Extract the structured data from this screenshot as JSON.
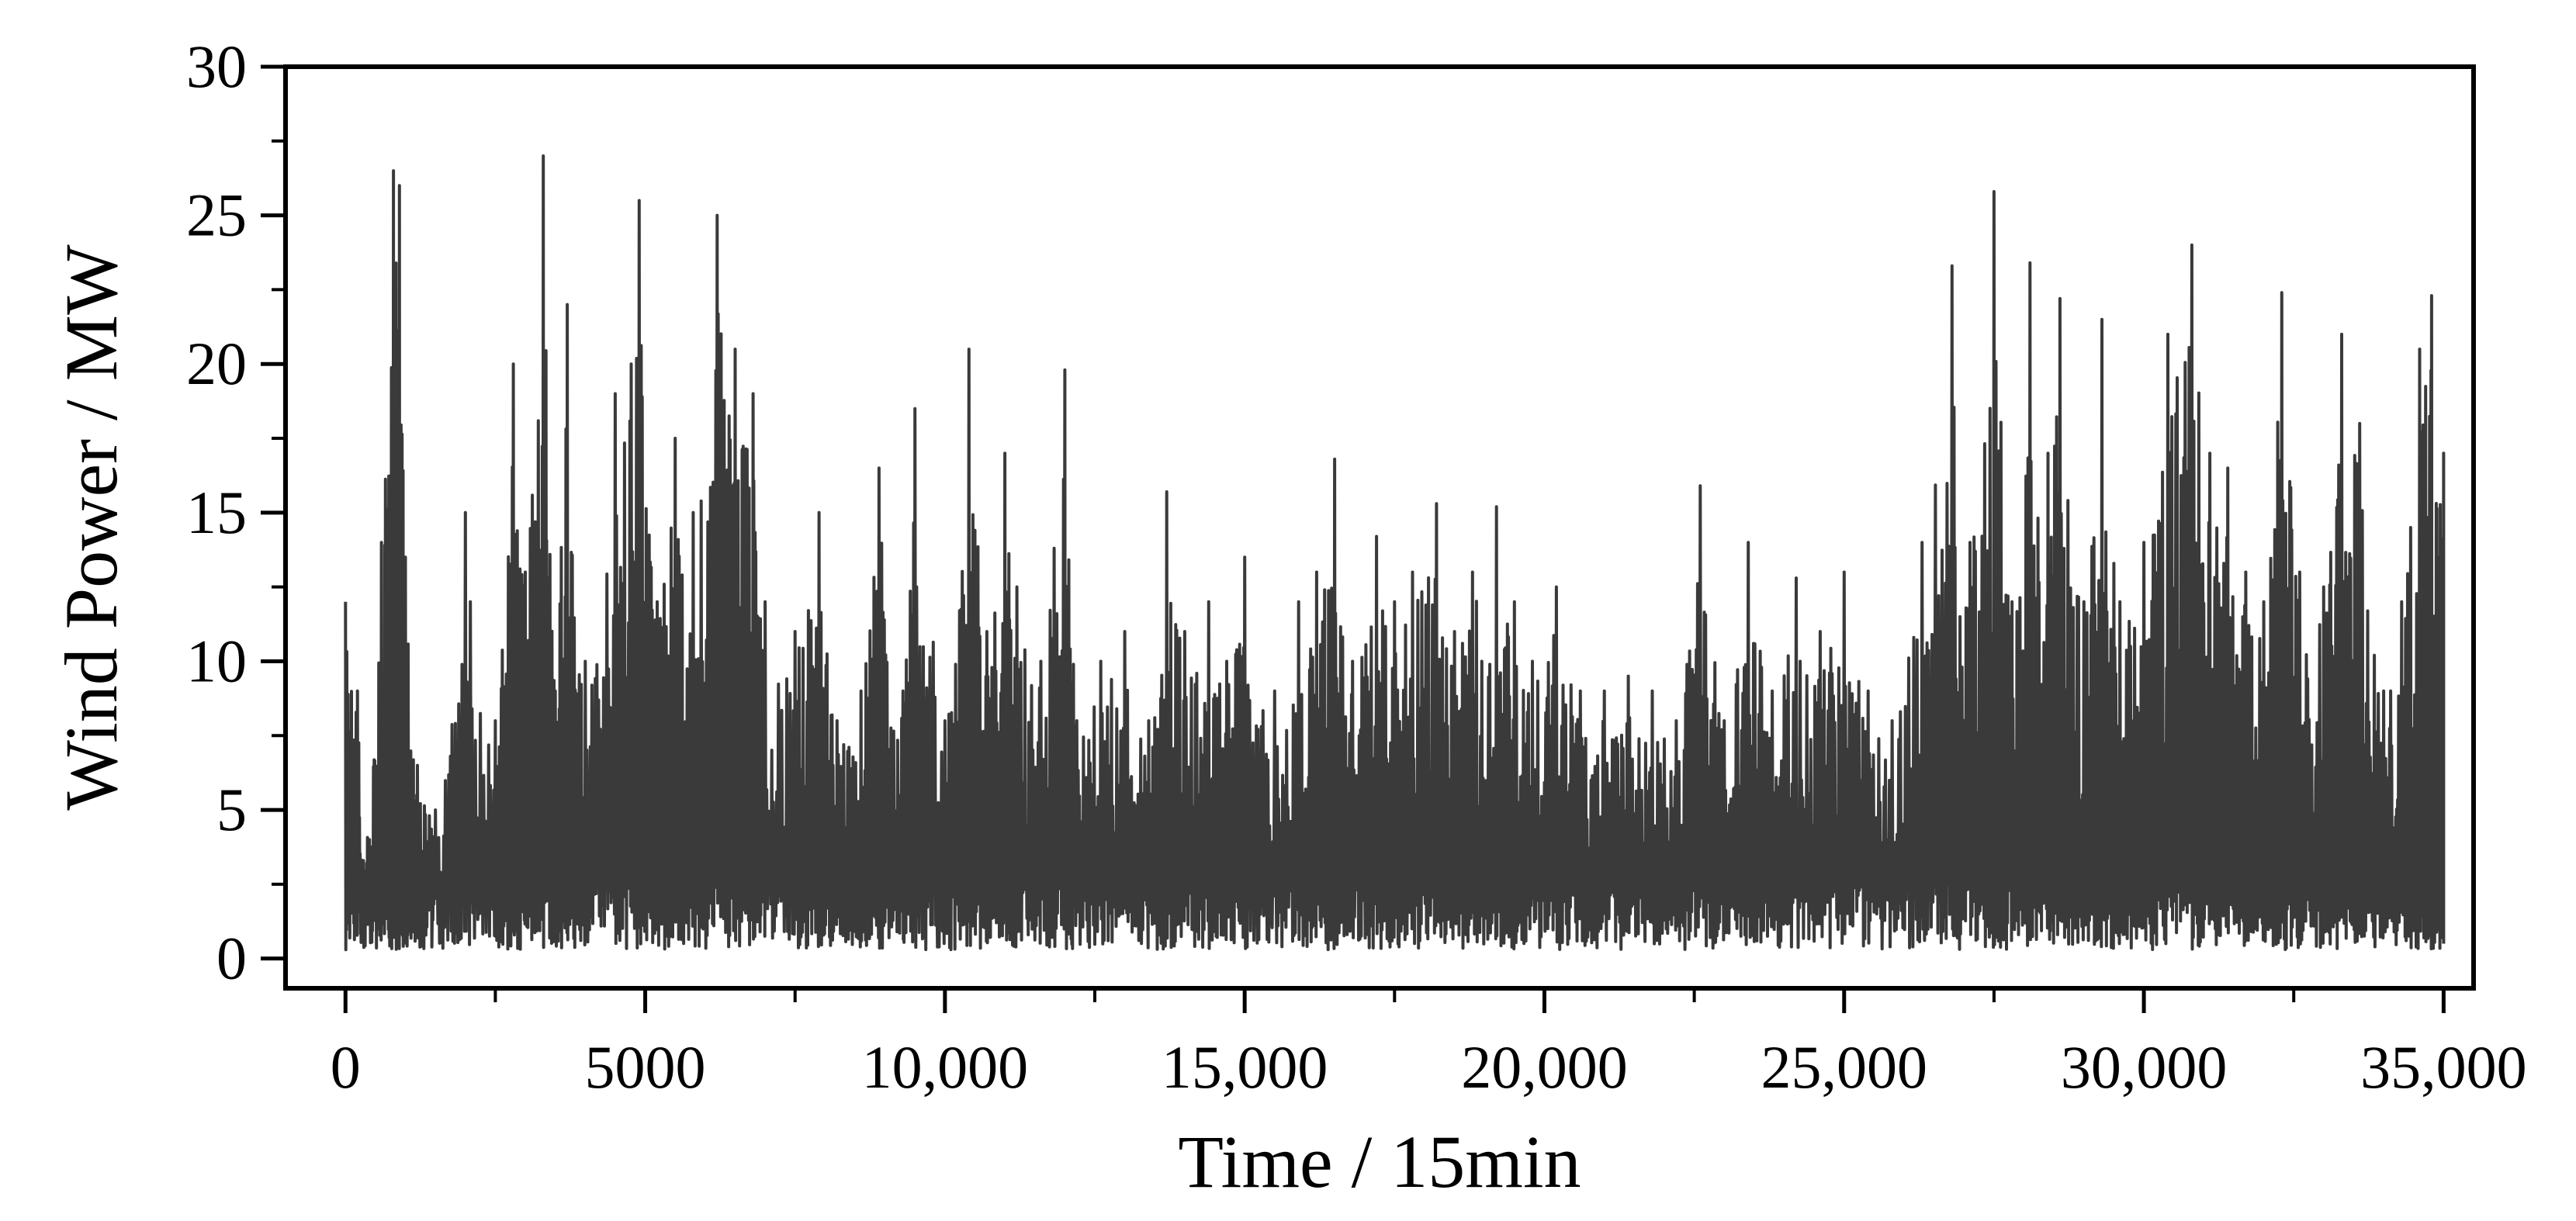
{
  "chart_data": {
    "type": "line",
    "title": "",
    "xlabel": "Time / 15min",
    "ylabel": "Wind Power / MW",
    "xlim": [
      -1000,
      35500
    ],
    "ylim": [
      -1,
      30
    ],
    "x_ticks": [
      0,
      5000,
      10000,
      15000,
      20000,
      25000,
      30000,
      35000
    ],
    "x_tick_labels": [
      "0",
      "5000",
      "10,000",
      "15,000",
      "20,000",
      "25,000",
      "30,000",
      "35,000"
    ],
    "y_ticks": [
      0,
      5,
      10,
      15,
      20,
      25,
      30
    ],
    "y_tick_labels": [
      "0",
      "5",
      "10",
      "15",
      "20",
      "25",
      "30"
    ],
    "grid": false,
    "legend": "none",
    "color": "#3a3a3a",
    "series": [
      {
        "x": [
          0,
          200,
          400,
          600,
          800,
          900,
          1000,
          1200,
          1500,
          2000,
          2500,
          2800,
          3000,
          3300,
          3500,
          3700,
          4000,
          4500,
          4900,
          5200,
          5500,
          5800,
          6200,
          6500,
          6800,
          7000,
          7500,
          7900,
          8200,
          8600,
          8900,
          9300,
          9500,
          10000,
          10400,
          10700,
          11000,
          11200,
          11600,
          12000,
          12200,
          12600,
          13000,
          13400,
          13700,
          14000,
          14400,
          14700,
          15000,
          15500,
          15900,
          16200,
          16500,
          16800,
          17200,
          17500,
          17800,
          18200,
          18500,
          18800,
          19200,
          19500,
          19800,
          20200,
          20600,
          21000,
          21400,
          21800,
          22200,
          22600,
          23000,
          23400,
          23800,
          24200,
          24600,
          25000,
          25400,
          25800,
          26300,
          26800,
          27100,
          27500,
          27800,
          28100,
          28400,
          28600,
          29000,
          29300,
          29600,
          30000,
          30400,
          30800,
          31100,
          31400,
          31700,
          32000,
          32300,
          32600,
          33000,
          33300,
          33600,
          34000,
          34300,
          34600,
          34800,
          35000
        ],
        "y": [
          12,
          9,
          4,
          14,
          26.5,
          26,
          13.5,
          6.5,
          5,
          15,
          8,
          20,
          13,
          27,
          9,
          22,
          10,
          19,
          25.5,
          12,
          17.5,
          15,
          25,
          20.5,
          19,
          12,
          11,
          15,
          8,
          9,
          16.5,
          9,
          18.5,
          8,
          20.5,
          11,
          17,
          12.5,
          10,
          19.8,
          8,
          10,
          11,
          8,
          15.7,
          11,
          12,
          10,
          13.5,
          9,
          12,
          13,
          16.8,
          10,
          14.2,
          12,
          13,
          15.3,
          11,
          13,
          15.2,
          12,
          10,
          12.5,
          9,
          9,
          9.5,
          9,
          8,
          15.9,
          8,
          14,
          9,
          12.8,
          11,
          13,
          9,
          8,
          14,
          23.3,
          14,
          25.8,
          12,
          23.4,
          17,
          22.2,
          12,
          21.5,
          12,
          14,
          21,
          24,
          17,
          16.5,
          13,
          12,
          22.4,
          13,
          12.5,
          21,
          18,
          9,
          12,
          20.5,
          22.3,
          17
        ]
      }
    ]
  }
}
